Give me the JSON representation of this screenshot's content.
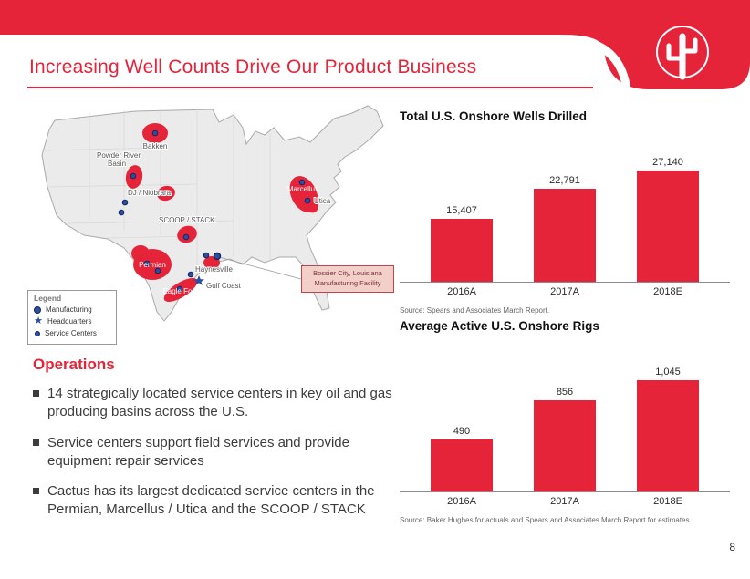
{
  "slide": {
    "title": "Increasing Well Counts Drive Our Product Business",
    "page_number": "8"
  },
  "colors": {
    "brand_red": "#E5243A",
    "bar_red": "#E5243A",
    "marker_blue": "#2B4EA0"
  },
  "map": {
    "labels": {
      "bakken": "Bakken",
      "powder_river_1": "Powder River",
      "powder_river_2": "Basin",
      "dj_niobrara": "DJ / Niobrara",
      "scoop_stack": "SCOOP / STACK",
      "permian": "Permian",
      "eagle_ford": "Eagle Ford",
      "haynesville": "Haynesville",
      "gulf_coast": "Gulf Coast",
      "marcellus": "Marcellus",
      "utica": "Utica"
    },
    "legend": {
      "title": "Legend",
      "items": [
        {
          "label": "Manufacturing",
          "icon": "manufacturing-circle-icon"
        },
        {
          "label": "Headquarters",
          "icon": "headquarters-star-icon",
          "glyph": "★"
        },
        {
          "label": "Service Centers",
          "icon": "service-center-dot-icon"
        }
      ]
    },
    "callout": {
      "line1": "Bossier City, Louisiana",
      "line2": "Manufacturing Facility"
    }
  },
  "operations": {
    "heading": "Operations",
    "bullets": [
      "14 strategically located service centers in key oil and gas producing basins across the U.S.",
      "Service centers support field services and provide equipment repair services",
      "Cactus has its largest dedicated service centers in the Permian, Marcellus / Utica and the SCOOP / STACK"
    ]
  },
  "chart_data": [
    {
      "type": "bar",
      "title": "Total U.S. Onshore Wells Drilled",
      "categories": [
        "2016A",
        "2017A",
        "2018E"
      ],
      "values": [
        15407,
        22791,
        27140
      ],
      "value_labels": [
        "15,407",
        "22,791",
        "27,140"
      ],
      "ylim": [
        0,
        28500
      ],
      "bar_color": "#E5243A",
      "grid": false,
      "source": "Source: Spears and Associates March Report."
    },
    {
      "type": "bar",
      "title": "Average Active U.S. Onshore Rigs",
      "categories": [
        "2016A",
        "2017A",
        "2018E"
      ],
      "values": [
        490,
        856,
        1045
      ],
      "value_labels": [
        "490",
        "856",
        "1,045"
      ],
      "ylim": [
        0,
        1100
      ],
      "bar_color": "#E5243A",
      "grid": false,
      "source": "Source: Baker Hughes for actuals and Spears and Associates March Report for estimates."
    }
  ]
}
